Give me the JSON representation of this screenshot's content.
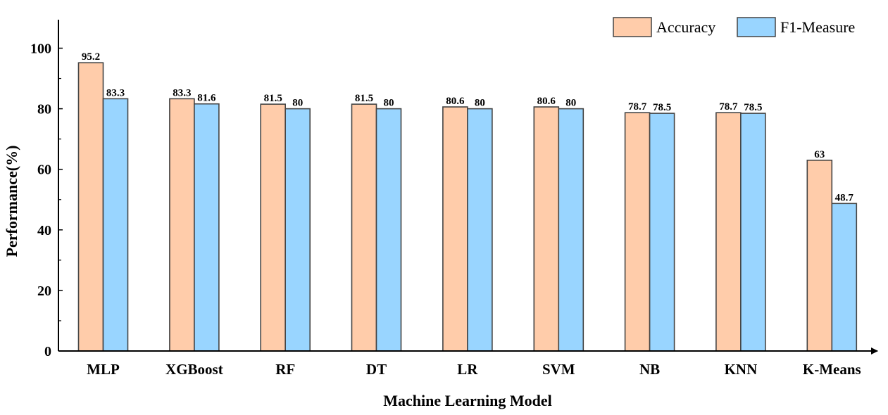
{
  "chart_data": {
    "type": "bar",
    "title": "",
    "xlabel": "Machine Learning Model",
    "ylabel": "Performance(%)",
    "ylim": [
      0,
      110
    ],
    "yticks": [
      "0",
      "20",
      "40",
      "60",
      "80",
      "100"
    ],
    "grid": false,
    "legend_position": "top-right",
    "categories": [
      "MLP",
      "XGBoost",
      "RF",
      "DT",
      "LR",
      "SVM",
      "NB",
      "KNN",
      "K-Means"
    ],
    "series": [
      {
        "name": "Accuracy",
        "color": "#ffccaa",
        "values": [
          95.2,
          83.3,
          81.5,
          81.5,
          80.6,
          80.6,
          78.7,
          78.7,
          63
        ],
        "labels": [
          "95.2",
          "83.3",
          "81.5",
          "81.5",
          "80.6",
          "80.6",
          "78.7",
          "78.7",
          "63"
        ]
      },
      {
        "name": "F1-Measure",
        "color": "#99d5ff",
        "values": [
          83.3,
          81.6,
          80,
          80,
          80,
          80,
          78.5,
          78.5,
          48.7
        ],
        "labels": [
          "83.3",
          "81.6",
          "80",
          "80",
          "80",
          "80",
          "78.5",
          "78.5",
          "48.7"
        ]
      }
    ]
  }
}
